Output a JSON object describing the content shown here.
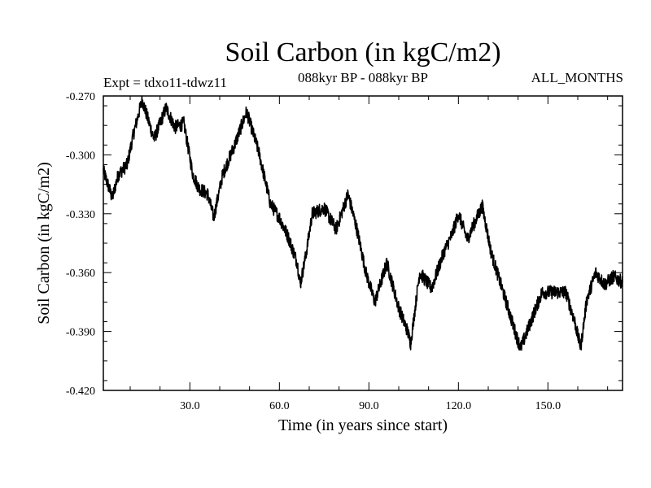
{
  "chart_data": {
    "type": "line",
    "title": "Soil Carbon (in kgC/m2)",
    "experiment": "Expt = tdxo11-tdwz11",
    "period": "088kyr BP - 088kyr BP",
    "months": "ALL_MONTHS",
    "xlabel": "Time (in years since start)",
    "ylabel": "Soil Carbon (in kgC/m2)",
    "xlim": [
      1,
      175
    ],
    "ylim": [
      -0.42,
      -0.27
    ],
    "xticks": [
      30,
      60,
      90,
      120,
      150
    ],
    "xtick_labels": [
      "30.0",
      "60.0",
      "90.0",
      "120.0",
      "150.0"
    ],
    "yticks": [
      -0.27,
      -0.3,
      -0.33,
      -0.36,
      -0.39,
      -0.42
    ],
    "ytick_labels": [
      "-0.270",
      "-0.300",
      "-0.330",
      "-0.360",
      "-0.390",
      "-0.420"
    ],
    "series": [
      {
        "name": "Soil Carbon",
        "keypoints": [
          [
            1,
            -0.308
          ],
          [
            4,
            -0.322
          ],
          [
            6,
            -0.31
          ],
          [
            9,
            -0.305
          ],
          [
            11,
            -0.29
          ],
          [
            14,
            -0.272
          ],
          [
            18,
            -0.292
          ],
          [
            22,
            -0.276
          ],
          [
            25,
            -0.286
          ],
          [
            28,
            -0.284
          ],
          [
            31,
            -0.31
          ],
          [
            33,
            -0.317
          ],
          [
            36,
            -0.32
          ],
          [
            38,
            -0.332
          ],
          [
            41,
            -0.31
          ],
          [
            45,
            -0.295
          ],
          [
            49,
            -0.278
          ],
          [
            53,
            -0.298
          ],
          [
            57,
            -0.325
          ],
          [
            60,
            -0.332
          ],
          [
            63,
            -0.342
          ],
          [
            66,
            -0.355
          ],
          [
            67,
            -0.366
          ],
          [
            69,
            -0.35
          ],
          [
            71,
            -0.33
          ],
          [
            75,
            -0.327
          ],
          [
            79,
            -0.338
          ],
          [
            83,
            -0.32
          ],
          [
            86,
            -0.338
          ],
          [
            89,
            -0.36
          ],
          [
            92,
            -0.375
          ],
          [
            96,
            -0.355
          ],
          [
            100,
            -0.378
          ],
          [
            103,
            -0.39
          ],
          [
            104,
            -0.396
          ],
          [
            107,
            -0.36
          ],
          [
            111,
            -0.368
          ],
          [
            115,
            -0.35
          ],
          [
            118,
            -0.34
          ],
          [
            120,
            -0.33
          ],
          [
            123,
            -0.343
          ],
          [
            125,
            -0.336
          ],
          [
            128,
            -0.326
          ],
          [
            131,
            -0.35
          ],
          [
            134,
            -0.365
          ],
          [
            138,
            -0.385
          ],
          [
            140,
            -0.395
          ],
          [
            141,
            -0.398
          ],
          [
            145,
            -0.382
          ],
          [
            148,
            -0.37
          ],
          [
            152,
            -0.37
          ],
          [
            156,
            -0.37
          ],
          [
            159,
            -0.385
          ],
          [
            160,
            -0.392
          ],
          [
            161,
            -0.398
          ],
          [
            163,
            -0.374
          ],
          [
            166,
            -0.36
          ],
          [
            169,
            -0.366
          ],
          [
            172,
            -0.362
          ],
          [
            175,
            -0.365
          ]
        ]
      }
    ]
  }
}
